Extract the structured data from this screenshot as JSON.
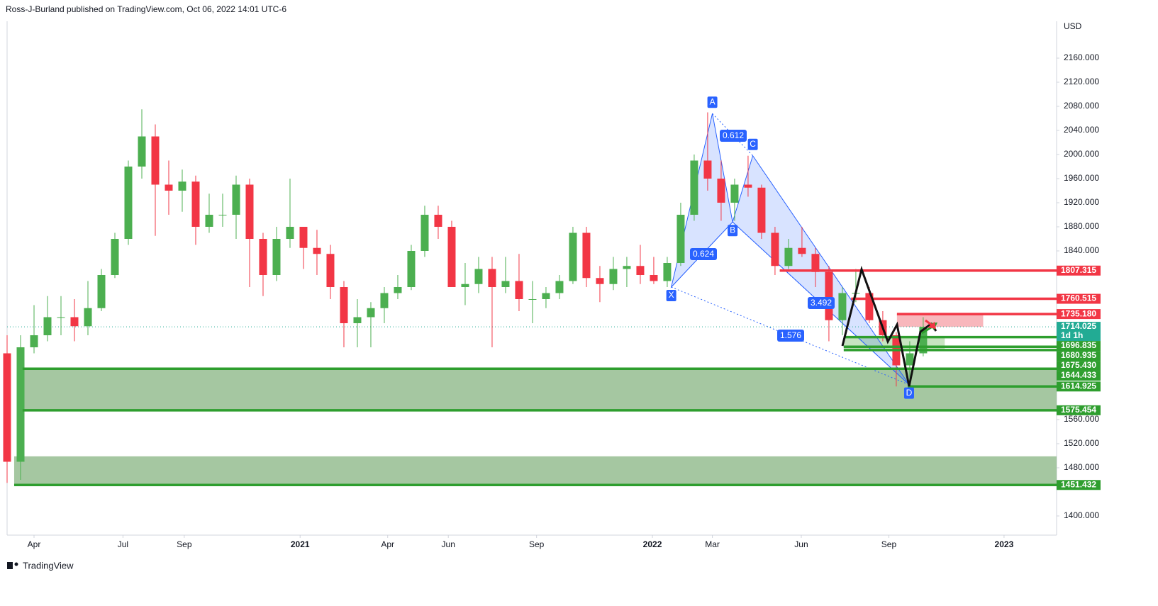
{
  "header": "Ross-J-Burland published on TradingView.com, Oct 06, 2022 14:01 UTC-6",
  "footer": "TradingView",
  "chart_data": {
    "type": "candlestick",
    "currency": "USD",
    "ylim": [
      1368.2,
      2221.2
    ],
    "xlim": [
      0,
      155.8
    ],
    "yticks": [
      {
        "value": 2160,
        "label": "2160.000"
      },
      {
        "value": 2120,
        "label": "2120.000"
      },
      {
        "value": 2080,
        "label": "2080.000"
      },
      {
        "value": 2040,
        "label": "2040.000"
      },
      {
        "value": 2000,
        "label": "2000.000"
      },
      {
        "value": 1960,
        "label": "1960.000"
      },
      {
        "value": 1920,
        "label": "1920.000"
      },
      {
        "value": 1880,
        "label": "1880.000"
      },
      {
        "value": 1840,
        "label": "1840.000"
      },
      {
        "value": 1560,
        "label": "1560.000"
      },
      {
        "value": 1520,
        "label": "1520.000"
      },
      {
        "value": 1480,
        "label": "1480.000"
      },
      {
        "value": 1400,
        "label": "1400.000"
      }
    ],
    "xticks": [
      {
        "value": 4.0,
        "label": "Apr"
      },
      {
        "value": 17.2,
        "label": "Jul"
      },
      {
        "value": 26.3,
        "label": "Sep"
      },
      {
        "value": 43.5,
        "label": "2021"
      },
      {
        "value": 56.5,
        "label": "Apr"
      },
      {
        "value": 65.5,
        "label": "Jun"
      },
      {
        "value": 78.6,
        "label": "Sep"
      },
      {
        "value": 95.8,
        "label": "2022"
      },
      {
        "value": 104.7,
        "label": "Mar"
      },
      {
        "value": 117.9,
        "label": "Jun"
      },
      {
        "value": 130.9,
        "label": "Sep"
      },
      {
        "value": 148.0,
        "label": "2023"
      }
    ],
    "up_color": "#4caf50",
    "down_color": "#f23645",
    "series": {
      "x": [
        0,
        2,
        4,
        6,
        8,
        10,
        12,
        14,
        16,
        18,
        20,
        22,
        24,
        26,
        28,
        30,
        32,
        34,
        36,
        38,
        40,
        42,
        44,
        46,
        48,
        50,
        52,
        54,
        56,
        58,
        60,
        62,
        64,
        66,
        68,
        70,
        72,
        74,
        76,
        78,
        80,
        82,
        84,
        86,
        88,
        90,
        92,
        94,
        96,
        98,
        100,
        102,
        104,
        106,
        108,
        110,
        112,
        114,
        116,
        118,
        120,
        122,
        124,
        126,
        128,
        130,
        132,
        134,
        136
      ],
      "open": [
        1670,
        1490,
        1680,
        1700,
        1730,
        1730,
        1715,
        1745,
        1800,
        1860,
        1980,
        2030,
        1950,
        1940,
        1955,
        1880,
        1900,
        1900,
        1950,
        1860,
        1800,
        1860,
        1880,
        1845,
        1835,
        1780,
        1720,
        1730,
        1745,
        1770,
        1780,
        1840,
        1900,
        1880,
        1780,
        1785,
        1810,
        1780,
        1790,
        1760,
        1760,
        1770,
        1790,
        1870,
        1795,
        1785,
        1810,
        1815,
        1800,
        1790,
        1820,
        1900,
        1990,
        1960,
        1920,
        1950,
        1945,
        1870,
        1815,
        1845,
        1835,
        1805,
        1725,
        1770,
        1770,
        1725,
        1700,
        1650,
        1670
      ],
      "high": [
        1700,
        1700,
        1750,
        1765,
        1765,
        1760,
        1790,
        1810,
        1870,
        1990,
        2075,
        2050,
        1990,
        1975,
        1965,
        1935,
        1935,
        1965,
        1960,
        1870,
        1880,
        1960,
        1880,
        1875,
        1850,
        1790,
        1760,
        1755,
        1780,
        1800,
        1850,
        1915,
        1915,
        1890,
        1820,
        1830,
        1830,
        1830,
        1835,
        1790,
        1780,
        1800,
        1880,
        1880,
        1815,
        1830,
        1830,
        1850,
        1830,
        1830,
        1920,
        2000,
        2070,
        1990,
        1960,
        1998,
        1950,
        1880,
        1860,
        1880,
        1845,
        1815,
        1780,
        1810,
        1780,
        1740,
        1705,
        1690,
        1730
      ],
      "low": [
        1455,
        1460,
        1670,
        1690,
        1700,
        1690,
        1700,
        1740,
        1795,
        1850,
        1960,
        1865,
        1900,
        1905,
        1850,
        1870,
        1880,
        1860,
        1780,
        1765,
        1790,
        1845,
        1810,
        1800,
        1760,
        1680,
        1680,
        1680,
        1720,
        1760,
        1775,
        1830,
        1860,
        1780,
        1750,
        1770,
        1680,
        1770,
        1740,
        1720,
        1745,
        1760,
        1785,
        1780,
        1755,
        1775,
        1780,
        1785,
        1785,
        1780,
        1815,
        1890,
        1940,
        1890,
        1890,
        1930,
        1860,
        1800,
        1810,
        1830,
        1780,
        1690,
        1700,
        1755,
        1720,
        1690,
        1615,
        1620,
        1665
      ],
      "close": [
        1490,
        1680,
        1700,
        1730,
        1730,
        1715,
        1745,
        1800,
        1860,
        1980,
        2030,
        1950,
        1940,
        1955,
        1880,
        1900,
        1900,
        1950,
        1860,
        1800,
        1860,
        1880,
        1845,
        1835,
        1780,
        1720,
        1730,
        1745,
        1770,
        1780,
        1840,
        1900,
        1880,
        1780,
        1785,
        1810,
        1780,
        1790,
        1760,
        1760,
        1770,
        1790,
        1870,
        1795,
        1785,
        1810,
        1815,
        1800,
        1790,
        1820,
        1900,
        1990,
        1960,
        1920,
        1950,
        1945,
        1870,
        1815,
        1845,
        1835,
        1805,
        1725,
        1770,
        1770,
        1725,
        1700,
        1650,
        1670,
        1714
      ]
    },
    "last_price": {
      "value": 1714.025,
      "label": "1714.025",
      "countdown": "1d 1h",
      "color": "#22ab94"
    },
    "levels": [
      {
        "value": 1807.315,
        "label": "1807.315",
        "color": "#f23645",
        "start": 114.7
      },
      {
        "value": 1760.515,
        "label": "1760.515",
        "color": "#f23645",
        "start": 125.3
      },
      {
        "value": 1735.18,
        "label": "1735.180",
        "color": "#f23645",
        "start": 132.1
      },
      {
        "value": 1696.835,
        "label": "1696.835",
        "color": "#2e9e2e",
        "start": 124.2
      },
      {
        "value": 1680.935,
        "label": "1680.935",
        "color": "#2e9e2e",
        "start": 124.2
      },
      {
        "value": 1675.43,
        "label": "1675.430",
        "color": "#2e9e2e",
        "start": 124.2
      },
      {
        "value": 1644.433,
        "label": "1644.433",
        "color": "#2e9e2e",
        "start": 2.3
      },
      {
        "value": 1614.925,
        "label": "1614.925",
        "color": "#2e9e2e",
        "start": 133.7
      },
      {
        "value": 1575.454,
        "label": "1575.454",
        "color": "#2e9e2e",
        "start": 2.3
      },
      {
        "value": 1451.432,
        "label": "1451.432",
        "color": "#2e9e2e",
        "start": 1.05
      }
    ],
    "zones": [
      {
        "low": 1575.454,
        "high": 1644.433,
        "start": 2.3,
        "end": 155.8,
        "color": "#8fb98a"
      },
      {
        "low": 1451.432,
        "high": 1499,
        "start": 1.05,
        "end": 155.8,
        "color": "#8fb98a"
      },
      {
        "low": 1714.025,
        "high": 1735.18,
        "start": 132.1,
        "end": 144.9,
        "color": "#f6a5ab"
      },
      {
        "low": 1675.43,
        "high": 1696.835,
        "start": 124.2,
        "end": 139.2,
        "color": "#b9ddb0"
      }
    ],
    "pattern": {
      "points": [
        {
          "label": "X",
          "x": 98.6,
          "y": 1780
        },
        {
          "label": "A",
          "x": 104.7,
          "y": 2068
        },
        {
          "label": "B",
          "x": 107.7,
          "y": 1888
        },
        {
          "label": "C",
          "x": 110.7,
          "y": 1998
        },
        {
          "label": "D",
          "x": 133.9,
          "y": 1618
        }
      ],
      "ratios": [
        "0.612",
        "0.624",
        "3.492",
        "1.576"
      ]
    }
  }
}
